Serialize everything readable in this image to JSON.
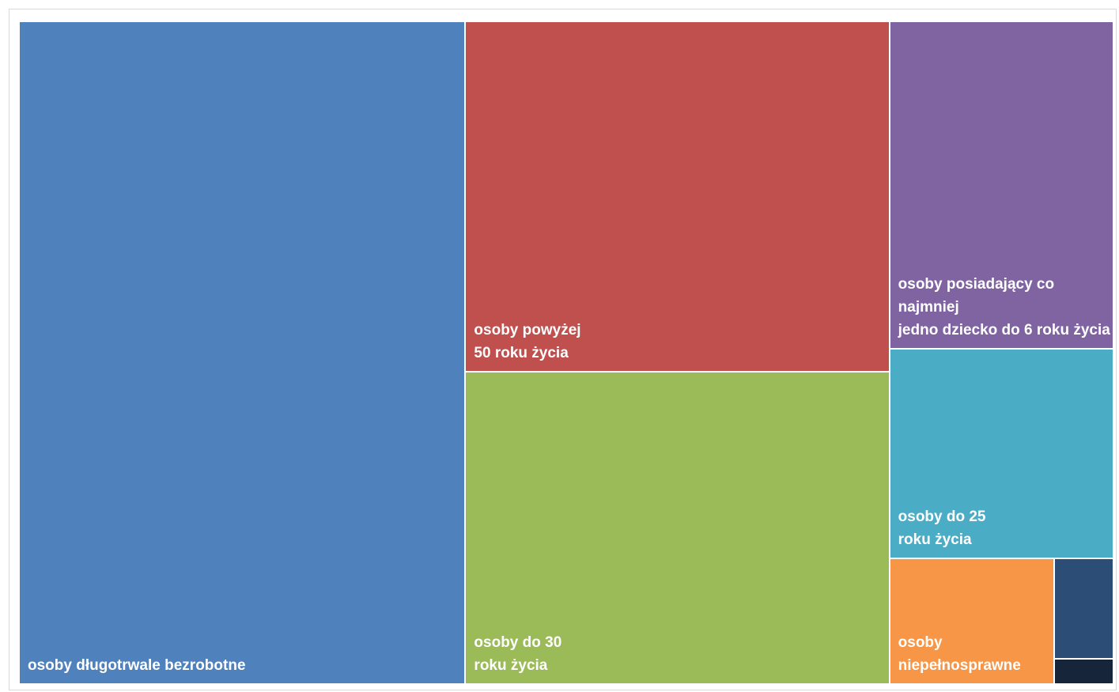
{
  "chart_data": {
    "type": "treemap",
    "title": "",
    "items": [
      {
        "label": "osoby długotrwale bezrobotne",
        "value": 100,
        "color": "#4F81BD"
      },
      {
        "label": "osoby powyżej\n50 roku życia",
        "value": 50.2,
        "color": "#C0504D"
      },
      {
        "label": "osoby do 30\nroku życia",
        "value": 44.8,
        "color": "#9BBB59"
      },
      {
        "label": "osoby posiadający co najmniej\njedno dziecko do 6 roku życia",
        "value": 24.8,
        "color": "#8064A2"
      },
      {
        "label": "osoby do 25\nroku życia",
        "value": 15.9,
        "color": "#4BACC6"
      },
      {
        "label": "osoby niepełnosprawne",
        "value": 7.0,
        "color": "#F79646"
      },
      {
        "label": "",
        "value": 2.0,
        "color": "#2C4D75"
      },
      {
        "label": "",
        "value": 0.5,
        "color": "#17253B"
      }
    ]
  }
}
